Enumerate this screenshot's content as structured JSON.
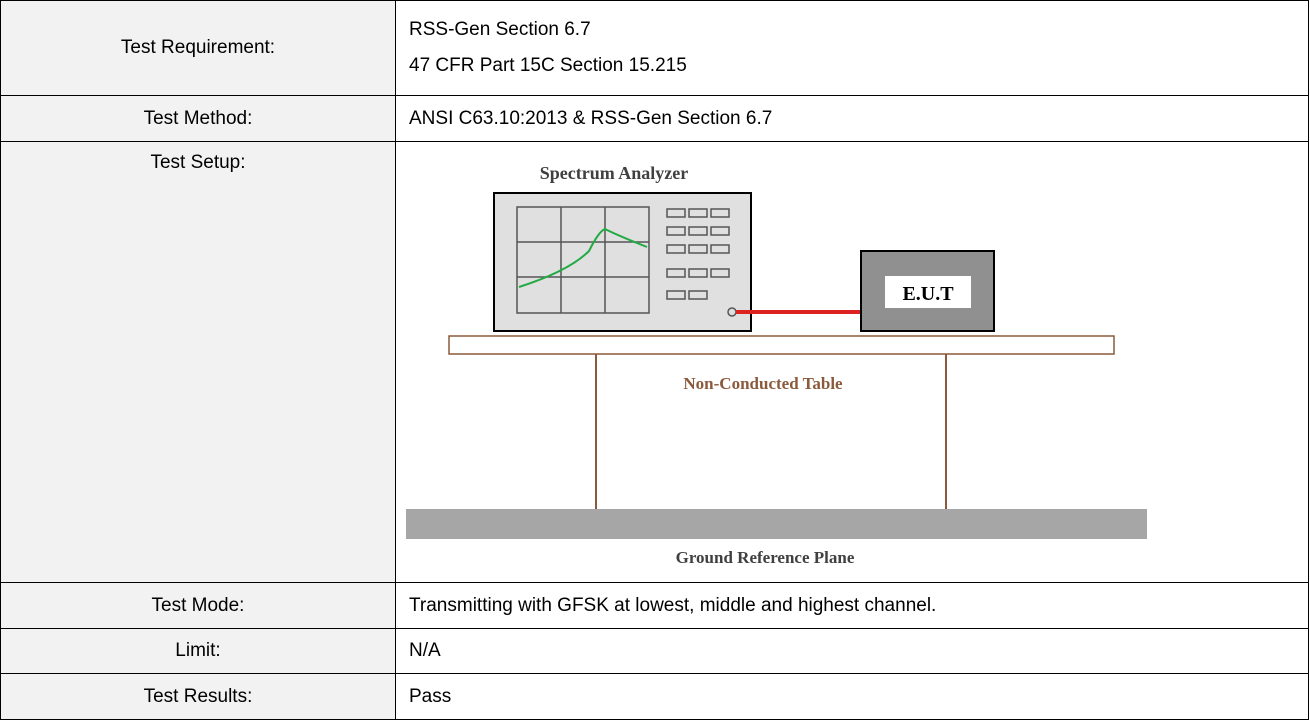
{
  "table": {
    "rows": [
      {
        "label": "Test Requirement:",
        "lines": [
          "RSS-Gen Section 6.7",
          "47 CFR Part 15C Section 15.215"
        ]
      },
      {
        "label": "Test Method:",
        "lines": [
          "ANSI C63.10:2013 & RSS-Gen Section 6.7"
        ]
      },
      {
        "label": "Test Setup:",
        "diagram": {
          "analyzer": "Spectrum Analyzer",
          "eut": "E.U.T",
          "table": "Non-Conducted Table",
          "ground": "Ground Reference Plane"
        }
      },
      {
        "label": "Test Mode:",
        "lines": [
          "Transmitting with GFSK at lowest, middle and highest channel."
        ]
      },
      {
        "label": "Limit:",
        "lines": [
          "N/A"
        ]
      },
      {
        "label": "Test Results:",
        "lines": [
          "Pass"
        ]
      }
    ]
  }
}
